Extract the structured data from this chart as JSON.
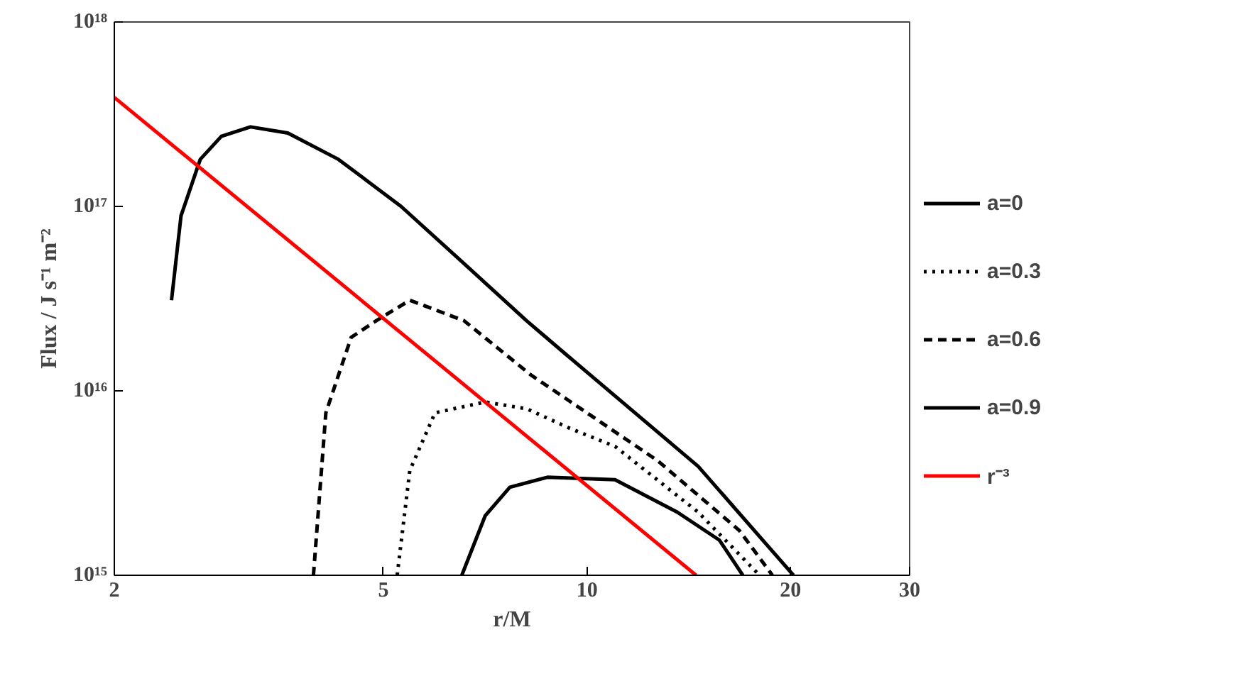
{
  "chart_data": {
    "type": "line",
    "xlabel": "r/M",
    "ylabel": "Flux / J s⁻¹ m⁻²",
    "log": "xy",
    "xlim": [
      2,
      30
    ],
    "xticks": [
      2,
      5,
      10,
      20,
      30
    ],
    "ylim": [
      1000000000000000.0,
      1e+18
    ],
    "yticks": [
      {
        "value": 1000000000000000.0,
        "label": "10¹⁵"
      },
      {
        "value": 1e+16,
        "label": "10¹⁶"
      },
      {
        "value": 1e+17,
        "label": "10¹⁷"
      },
      {
        "value": 1e+18,
        "label": "10¹⁸"
      }
    ],
    "grid": false,
    "legend": "right",
    "marker": "none",
    "series": [
      {
        "name": "a=0",
        "color": "#000000",
        "line_style": "solid",
        "x": [
          6.53,
          7.07,
          7.69,
          8.74,
          11.0,
          13.6,
          15.7,
          17.0
        ],
        "values": [
          1000000000000000.0,
          2100000000000000.0,
          3000000000000000.0,
          3400000000000000.0,
          3300000000000000.0,
          2200000000000000.0,
          1550000000000000.0,
          1000000000000000.0
        ]
      },
      {
        "name": "a=0.3",
        "color": "#000000",
        "line_style": "dotted",
        "x": [
          5.24,
          5.47,
          5.96,
          7.07,
          8.14,
          9.4,
          11.0,
          14.6,
          18.0
        ],
        "values": [
          1000000000000000.0,
          3700000000000000.0,
          7600000000000000.0,
          8700000000000000.0,
          8000000000000000.0,
          6300000000000000.0,
          5000000000000000.0,
          2200000000000000.0,
          1000000000000000.0
        ]
      },
      {
        "name": "a=0.6",
        "color": "#000000",
        "line_style": "dashed",
        "x": [
          3.94,
          4.11,
          4.48,
          4.88,
          5.47,
          6.58,
          8.26,
          12.7,
          16.8,
          18.8
        ],
        "values": [
          1000000000000000.0,
          7600000000000000.0,
          1.95e+16,
          2.4e+16,
          3.1e+16,
          2.4e+16,
          1.22e+16,
          4200000000000000.0,
          1750000000000000.0,
          1000000000000000.0
        ]
      },
      {
        "name": "a=0.9",
        "color": "#000000",
        "line_style": "solid",
        "x": [
          2.43,
          2.51,
          2.68,
          2.88,
          3.18,
          3.61,
          4.29,
          5.31,
          6.58,
          8.14,
          9.4,
          14.6,
          20.2
        ],
        "values": [
          3.1e+16,
          8.9e+16,
          1.8e+17,
          2.4e+17,
          2.7e+17,
          2.5e+17,
          1.8e+17,
          1e+17,
          4.9e+16,
          2.4e+16,
          1.53e+16,
          3900000000000000.0,
          1000000000000000.0
        ]
      },
      {
        "name": "r⁻³",
        "color": "#ff0000",
        "line_style": "solid",
        "x": [
          2,
          14.5
        ],
        "values": [
          3.9e+17,
          1000000000000000.0
        ]
      }
    ]
  }
}
